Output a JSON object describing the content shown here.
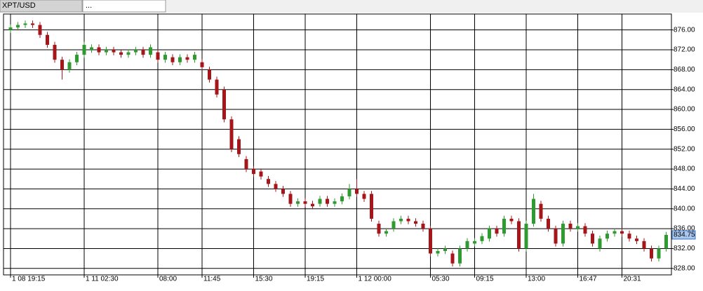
{
  "tabs": [
    "XPT/USD",
    "..."
  ],
  "chart_data": {
    "type": "candlestick",
    "categories": [
      "1 08 19:15",
      null,
      null,
      null,
      null,
      null,
      null,
      null,
      null,
      null,
      "1 11 02:30",
      null,
      null,
      null,
      null,
      null,
      null,
      null,
      null,
      null,
      "08:00",
      null,
      null,
      null,
      null,
      null,
      "11:45",
      null,
      null,
      null,
      null,
      null,
      null,
      "15:30",
      null,
      null,
      null,
      null,
      null,
      null,
      "19:15",
      null,
      null,
      null,
      null,
      null,
      null,
      "1 12 00:00",
      null,
      null,
      null,
      null,
      null,
      null,
      null,
      null,
      null,
      "05:30",
      null,
      null,
      null,
      null,
      null,
      "09:15",
      null,
      null,
      null,
      null,
      null,
      null,
      "13:00",
      null,
      null,
      null,
      null,
      null,
      null,
      "16:47",
      null,
      null,
      null,
      null,
      null,
      "20:31",
      null,
      null,
      null,
      null,
      null,
      null
    ],
    "open": [
      876,
      876.5,
      877,
      877.3,
      877,
      875,
      873,
      870,
      868,
      869.5,
      871,
      872,
      872.5,
      871.5,
      872,
      871.5,
      871,
      871.5,
      872,
      871,
      871.5,
      870,
      870.5,
      869.5,
      870.5,
      870,
      869.5,
      868,
      866,
      864,
      858,
      854,
      850,
      848,
      847.5,
      846,
      845,
      844,
      843,
      841,
      841.5,
      841,
      841,
      842,
      841,
      841.5,
      842.5,
      844,
      843,
      843,
      837,
      835,
      836,
      837.5,
      838,
      837.5,
      837,
      836,
      831,
      831.5,
      831,
      829,
      832,
      833,
      833.5,
      834,
      836,
      835,
      838,
      837.5,
      832,
      837,
      841,
      838,
      836,
      833,
      837,
      836,
      836.5,
      835,
      832,
      834,
      835,
      835.5,
      835,
      834,
      833.5,
      832,
      830,
      832
    ],
    "high": [
      877.1,
      877.6,
      877.9,
      877.9,
      877.6,
      875.6,
      873.6,
      870.6,
      870.1,
      871.6,
      873.6,
      873.1,
      873.1,
      872.6,
      872.6,
      872.1,
      872.1,
      872.6,
      872.6,
      873.1,
      872.1,
      871.6,
      871.1,
      871.1,
      871.1,
      871.6,
      870.1,
      868.6,
      866.6,
      864.6,
      858.6,
      854.6,
      850.6,
      848.6,
      848.1,
      846.6,
      845.6,
      844.6,
      843.6,
      842.1,
      842.1,
      841.6,
      842.6,
      842.6,
      842.1,
      843.1,
      845,
      846,
      843.6,
      843.6,
      837.6,
      836.1,
      838.1,
      838.6,
      838.6,
      838.1,
      837.6,
      836.6,
      832.1,
      832.6,
      831.6,
      832.6,
      834.1,
      834.1,
      835.1,
      836.6,
      836.6,
      838.6,
      838.6,
      838.1,
      837.6,
      843,
      841.6,
      838.6,
      836.6,
      837.6,
      837.6,
      837.1,
      837.1,
      835.6,
      834.6,
      835.6,
      836.1,
      836.1,
      835.6,
      834.6,
      834.1,
      832.6,
      832.6,
      835.35
    ],
    "low": [
      875.4,
      875.9,
      876.4,
      876.4,
      874.4,
      872.4,
      869.4,
      866,
      867.4,
      868.9,
      870.4,
      871.4,
      870.9,
      870.9,
      870.9,
      870.4,
      870.4,
      870.9,
      870.4,
      870.4,
      869.4,
      869.4,
      868.9,
      868.9,
      869.4,
      869.4,
      867.9,
      865.4,
      862.4,
      857.4,
      851.4,
      850.4,
      847.4,
      846.4,
      845.9,
      844.4,
      843.4,
      842.4,
      840.4,
      840.4,
      840.4,
      839.9,
      840.4,
      840.4,
      840.4,
      840.9,
      841.9,
      842.4,
      841.4,
      837.4,
      834.4,
      834.4,
      835.4,
      836.9,
      836.9,
      836.4,
      835.4,
      830.4,
      830.4,
      830.9,
      828.4,
      828.4,
      831.4,
      832.4,
      832.9,
      833.4,
      834.4,
      834.4,
      836.9,
      831.4,
      831.4,
      836.4,
      837.4,
      835.4,
      832.4,
      832.4,
      835.4,
      835.4,
      834.4,
      832.4,
      831.4,
      833.4,
      834.4,
      834.4,
      833.4,
      832.9,
      831.4,
      829.4,
      829.4,
      831.4
    ],
    "close": [
      876.5,
      877,
      877.3,
      877,
      875,
      873,
      870,
      868,
      869.5,
      871,
      873,
      872.5,
      871.5,
      872,
      871.5,
      871,
      871.5,
      872,
      871,
      872.5,
      870,
      871,
      869.5,
      870.5,
      870,
      871,
      868.5,
      866,
      863,
      858,
      852,
      851,
      848,
      847,
      846.5,
      845,
      844,
      843,
      841,
      841.5,
      841,
      840.5,
      842,
      841,
      841.5,
      842.5,
      844,
      843,
      842,
      838,
      835,
      835.5,
      837.5,
      838,
      837.5,
      837,
      836,
      831,
      831.5,
      832,
      829,
      832,
      833.5,
      833.5,
      834.5,
      836,
      835,
      838,
      837.5,
      832,
      837,
      842,
      838,
      836,
      833,
      837,
      836,
      836.5,
      835,
      833,
      834,
      835,
      835.5,
      835,
      834,
      833.5,
      832,
      830,
      832,
      834.75
    ],
    "up_color": "#2f9a2f",
    "down_color": "#a5161b",
    "ylim": [
      826.7,
      879.2
    ],
    "yticks": [
      {
        "value": 828,
        "label": "828.00"
      },
      {
        "value": 832,
        "label": "832.00"
      },
      {
        "value": 836,
        "label": "836.00"
      },
      {
        "value": 840,
        "label": "840.00"
      },
      {
        "value": 844,
        "label": "844.00"
      },
      {
        "value": 848,
        "label": "848.00"
      },
      {
        "value": 852,
        "label": "852.00"
      },
      {
        "value": 856,
        "label": "856.00"
      },
      {
        "value": 860,
        "label": "860.00"
      },
      {
        "value": 864,
        "label": "864.00"
      },
      {
        "value": 868,
        "label": "868.00"
      },
      {
        "value": 872,
        "label": "872.00"
      },
      {
        "value": 876,
        "label": "876.00"
      }
    ],
    "grid": true,
    "last_price": 834.75
  }
}
